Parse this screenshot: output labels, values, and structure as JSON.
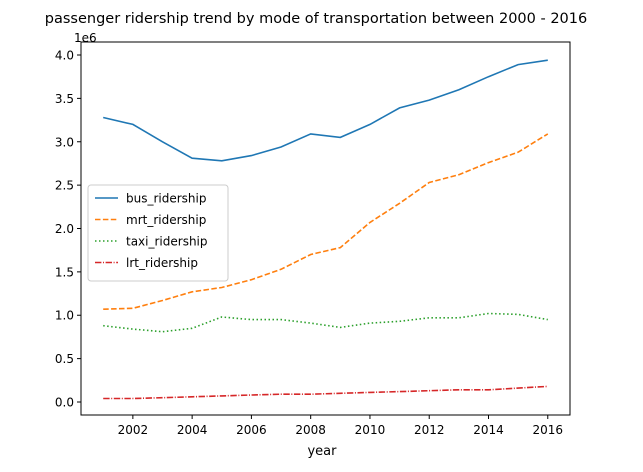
{
  "chart_data": {
    "type": "line",
    "title": "passenger ridership trend by mode of transportation between 2000 - 2016",
    "xlabel": "year",
    "ylabel": "",
    "y_offset_text": "1e6",
    "x": [
      2001,
      2002,
      2003,
      2004,
      2005,
      2006,
      2007,
      2008,
      2009,
      2010,
      2011,
      2012,
      2013,
      2014,
      2015,
      2016
    ],
    "xlim": [
      2000.25,
      2016.75
    ],
    "ylim": [
      -0.15,
      4.15
    ],
    "xticks": [
      2002,
      2004,
      2006,
      2008,
      2010,
      2012,
      2014,
      2016
    ],
    "xtick_labels": [
      "2002",
      "2004",
      "2006",
      "2008",
      "2010",
      "2012",
      "2014",
      "2016"
    ],
    "yticks": [
      0.0,
      0.5,
      1.0,
      1.5,
      2.0,
      2.5,
      3.0,
      3.5,
      4.0
    ],
    "ytick_labels": [
      "0.0",
      "0.5",
      "1.0",
      "1.5",
      "2.0",
      "2.5",
      "3.0",
      "3.5",
      "4.0"
    ],
    "grid": false,
    "legend_position": "center-left",
    "series": [
      {
        "name": "bus_ridership",
        "color": "#1f77b4",
        "dash": "solid",
        "values": [
          3.28,
          3.2,
          3.0,
          2.81,
          2.78,
          2.84,
          2.94,
          3.09,
          3.05,
          3.2,
          3.39,
          3.48,
          3.6,
          3.75,
          3.89,
          3.94
        ]
      },
      {
        "name": "mrt_ridership",
        "color": "#ff7f0e",
        "dash": "dashed",
        "values": [
          1.07,
          1.08,
          1.17,
          1.27,
          1.32,
          1.41,
          1.53,
          1.7,
          1.78,
          2.07,
          2.29,
          2.53,
          2.62,
          2.76,
          2.88,
          3.09
        ]
      },
      {
        "name": "taxi_ridership",
        "color": "#2ca02c",
        "dash": "dotted",
        "values": [
          0.88,
          0.84,
          0.81,
          0.85,
          0.98,
          0.95,
          0.95,
          0.91,
          0.86,
          0.91,
          0.93,
          0.97,
          0.97,
          1.02,
          1.01,
          0.95
        ]
      },
      {
        "name": "lrt_ridership",
        "color": "#d62728",
        "dash": "dashdot",
        "values": [
          0.04,
          0.04,
          0.05,
          0.06,
          0.07,
          0.08,
          0.09,
          0.09,
          0.1,
          0.11,
          0.12,
          0.13,
          0.14,
          0.14,
          0.16,
          0.18
        ]
      }
    ]
  }
}
